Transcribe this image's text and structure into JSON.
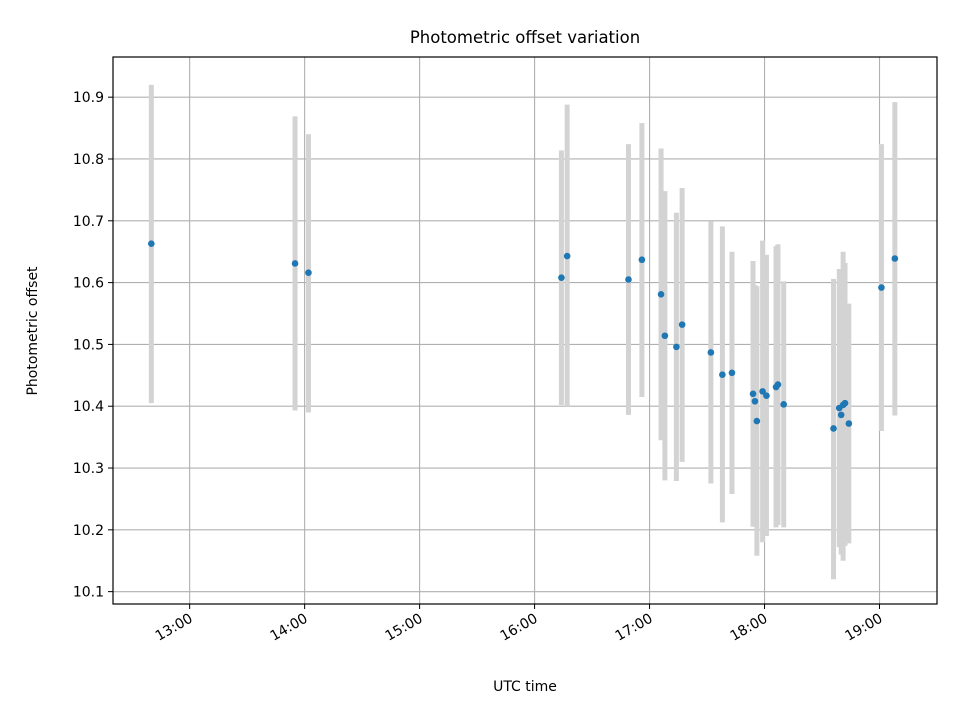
{
  "chart_data": {
    "type": "scatter",
    "title": "Photometric offset variation",
    "xlabel": "UTC time",
    "ylabel": "Photometric offset",
    "x_axis_kind": "time",
    "xlim": [
      "12:20",
      "19:30"
    ],
    "ylim": [
      10.08,
      10.965
    ],
    "xticks": [
      "13:00",
      "14:00",
      "15:00",
      "16:00",
      "17:00",
      "18:00",
      "19:00"
    ],
    "yticks": [
      "10.1",
      "10.2",
      "10.3",
      "10.4",
      "10.5",
      "10.6",
      "10.7",
      "10.8",
      "10.9"
    ],
    "grid": true,
    "error_bars": true,
    "colors": {
      "marker": "#1f77b4",
      "error_bar": "#d3d3d3",
      "grid": "#b0b0b0"
    },
    "points": [
      {
        "x": "12:40",
        "y": 10.663,
        "ylo": 10.405,
        "yhi": 10.92
      },
      {
        "x": "13:55",
        "y": 10.631,
        "ylo": 10.393,
        "yhi": 10.869
      },
      {
        "x": "14:02",
        "y": 10.616,
        "ylo": 10.39,
        "yhi": 10.84
      },
      {
        "x": "16:14",
        "y": 10.608,
        "ylo": 10.402,
        "yhi": 10.814
      },
      {
        "x": "16:17",
        "y": 10.643,
        "ylo": 10.4,
        "yhi": 10.888
      },
      {
        "x": "16:49",
        "y": 10.605,
        "ylo": 10.386,
        "yhi": 10.824
      },
      {
        "x": "16:56",
        "y": 10.637,
        "ylo": 10.415,
        "yhi": 10.858
      },
      {
        "x": "17:06",
        "y": 10.581,
        "ylo": 10.345,
        "yhi": 10.817
      },
      {
        "x": "17:08",
        "y": 10.514,
        "ylo": 10.28,
        "yhi": 10.748
      },
      {
        "x": "17:14",
        "y": 10.496,
        "ylo": 10.279,
        "yhi": 10.713
      },
      {
        "x": "17:17",
        "y": 10.532,
        "ylo": 10.31,
        "yhi": 10.753
      },
      {
        "x": "17:32",
        "y": 10.487,
        "ylo": 10.275,
        "yhi": 10.699
      },
      {
        "x": "17:38",
        "y": 10.451,
        "ylo": 10.212,
        "yhi": 10.691
      },
      {
        "x": "17:43",
        "y": 10.454,
        "ylo": 10.258,
        "yhi": 10.65
      },
      {
        "x": "17:54",
        "y": 10.42,
        "ylo": 10.205,
        "yhi": 10.635
      },
      {
        "x": "17:55",
        "y": 10.408,
        "ylo": 10.22,
        "yhi": 10.596
      },
      {
        "x": "17:56",
        "y": 10.376,
        "ylo": 10.158,
        "yhi": 10.594
      },
      {
        "x": "17:59",
        "y": 10.424,
        "ylo": 10.18,
        "yhi": 10.668
      },
      {
        "x": "18:01",
        "y": 10.417,
        "ylo": 10.19,
        "yhi": 10.645
      },
      {
        "x": "18:06",
        "y": 10.431,
        "ylo": 10.204,
        "yhi": 10.659
      },
      {
        "x": "18:07",
        "y": 10.435,
        "ylo": 10.208,
        "yhi": 10.662
      },
      {
        "x": "18:10",
        "y": 10.403,
        "ylo": 10.204,
        "yhi": 10.602
      },
      {
        "x": "18:36",
        "y": 10.364,
        "ylo": 10.12,
        "yhi": 10.606
      },
      {
        "x": "18:39",
        "y": 10.397,
        "ylo": 10.172,
        "yhi": 10.622
      },
      {
        "x": "18:40",
        "y": 10.386,
        "ylo": 10.16,
        "yhi": 10.612
      },
      {
        "x": "18:41",
        "y": 10.402,
        "ylo": 10.15,
        "yhi": 10.65
      },
      {
        "x": "18:42",
        "y": 10.405,
        "ylo": 10.174,
        "yhi": 10.632
      },
      {
        "x": "18:44",
        "y": 10.372,
        "ylo": 10.178,
        "yhi": 10.566
      },
      {
        "x": "19:01",
        "y": 10.592,
        "ylo": 10.36,
        "yhi": 10.824
      },
      {
        "x": "19:08",
        "y": 10.639,
        "ylo": 10.385,
        "yhi": 10.892
      }
    ]
  }
}
